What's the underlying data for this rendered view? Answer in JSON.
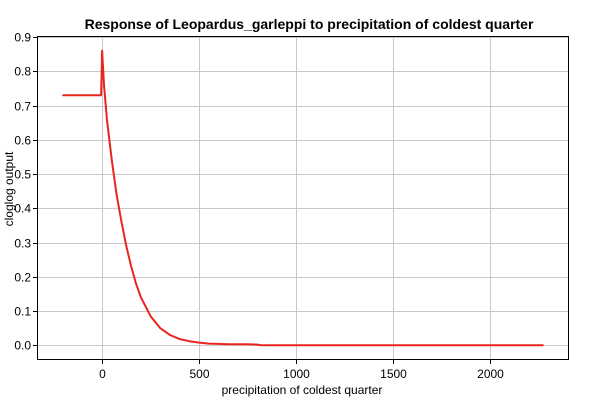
{
  "chart_data": {
    "type": "line",
    "title": "Response of Leopardus_garleppi to precipitation of coldest quarter",
    "xlabel": "precipitation of coldest quarter",
    "ylabel": "cloglog output",
    "xlim": [
      -330,
      2400
    ],
    "ylim": [
      -0.04,
      0.9
    ],
    "x_ticks": [
      0,
      500,
      1000,
      1500,
      2000
    ],
    "y_ticks": [
      0.0,
      0.1,
      0.2,
      0.3,
      0.4,
      0.5,
      0.6,
      0.7,
      0.8,
      0.9
    ],
    "y_tick_labels": [
      "0.0",
      "0.1",
      "0.2",
      "0.3",
      "0.4",
      "0.5",
      "0.6",
      "0.7",
      "0.8",
      "0.9"
    ],
    "grid": true,
    "series": [
      {
        "color": "#e8261f",
        "x": [
          -200,
          -100,
          -5,
          -2,
          0,
          10,
          25,
          50,
          75,
          100,
          125,
          150,
          175,
          200,
          250,
          300,
          350,
          400,
          450,
          500,
          550,
          600,
          650,
          700,
          750,
          800,
          820,
          900,
          1000,
          1200,
          1500,
          2000,
          2270
        ],
        "y": [
          0.73,
          0.73,
          0.73,
          0.8,
          0.86,
          0.76,
          0.66,
          0.54,
          0.44,
          0.36,
          0.29,
          0.23,
          0.18,
          0.14,
          0.085,
          0.05,
          0.03,
          0.018,
          0.012,
          0.008,
          0.005,
          0.004,
          0.003,
          0.003,
          0.003,
          0.002,
          0.0,
          0.0,
          0.0,
          0.0,
          0.0,
          0.0,
          0.0
        ]
      }
    ]
  }
}
